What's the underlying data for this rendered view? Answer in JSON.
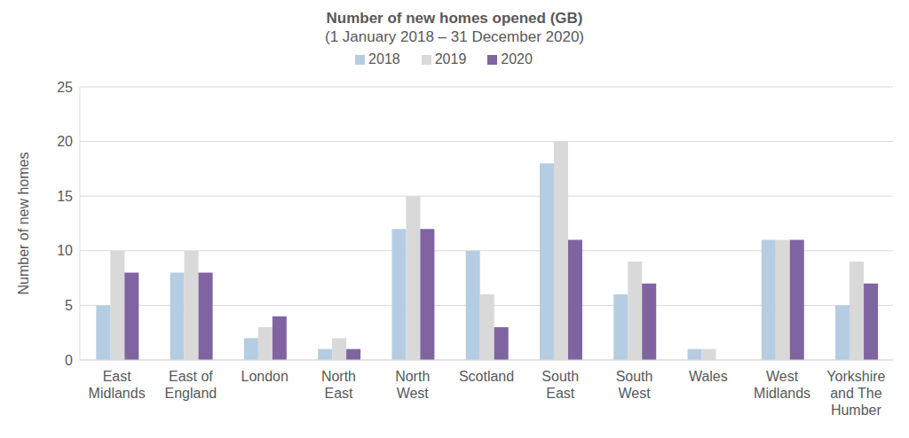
{
  "chart_data": {
    "type": "bar",
    "title": "Number of new homes opened (GB)",
    "subtitle": "(1 January 2018 – 31 December 2020)",
    "y_label": "Number of new homes",
    "categories": [
      "East Midlands",
      "East of England",
      "London",
      "North East",
      "North West",
      "Scotland",
      "South East",
      "South West",
      "Wales",
      "West Midlands",
      "Yorkshire and The Humber"
    ],
    "series": [
      {
        "name": "2018",
        "color": "#b4cde3",
        "values": [
          5,
          8,
          2,
          1,
          12,
          10,
          18,
          6,
          1,
          11,
          5
        ]
      },
      {
        "name": "2019",
        "color": "#d9d9d9",
        "values": [
          10,
          10,
          3,
          2,
          15,
          6,
          20,
          9,
          1,
          11,
          9
        ]
      },
      {
        "name": "2020",
        "color": "#8064a2",
        "values": [
          8,
          8,
          4,
          1,
          12,
          3,
          11,
          7,
          0,
          11,
          7
        ]
      }
    ],
    "ylim": [
      0,
      25
    ],
    "yticks": [
      0,
      5,
      10,
      15,
      20,
      25
    ],
    "grid": true,
    "legend": "top"
  }
}
